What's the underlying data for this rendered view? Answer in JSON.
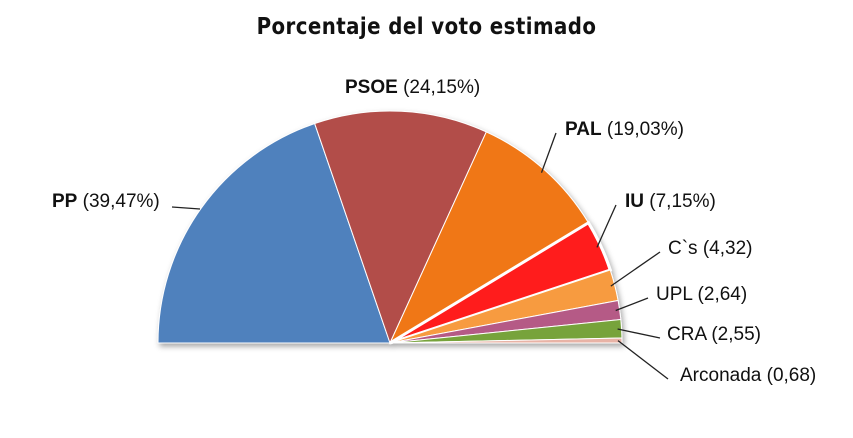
{
  "chart_data": {
    "type": "pie",
    "subtype": "half-pie",
    "title": "Porcentaje del voto estimado",
    "slices": [
      {
        "name": "PP",
        "value": 39.47,
        "label_name": "PP",
        "label_value": "(39,47%)",
        "bold": true,
        "color": "#4f81bd"
      },
      {
        "name": "PSOE",
        "value": 24.15,
        "label_name": "PSOE",
        "label_value": "(24,15%)",
        "bold": true,
        "color": "#b24d4a"
      },
      {
        "name": "PAL",
        "value": 19.03,
        "label_name": "PAL",
        "label_value": "(19,03%)",
        "bold": true,
        "color": "#f07716"
      },
      {
        "name": "IU",
        "value": 7.15,
        "label_name": "IU",
        "label_value": "(7,15%)",
        "bold": true,
        "color": "#ff1a1a"
      },
      {
        "name": "C`s",
        "value": 4.32,
        "label_name": "C`s",
        "label_value": "(4,32)",
        "bold": false,
        "color": "#f79b3f"
      },
      {
        "name": "UPL",
        "value": 2.64,
        "label_name": "UPL",
        "label_value": "(2,64)",
        "bold": false,
        "color": "#b55a86"
      },
      {
        "name": "CRA",
        "value": 2.55,
        "label_name": "CRA",
        "label_value": "(2,55)",
        "bold": false,
        "color": "#77a33b"
      },
      {
        "name": "Arconada",
        "value": 0.68,
        "label_name": "Arconada",
        "label_value": "(0,68)",
        "bold": false,
        "color": "#e8b3a6"
      }
    ],
    "legend": "none",
    "data_labels": "outside-with-leader-lines"
  }
}
